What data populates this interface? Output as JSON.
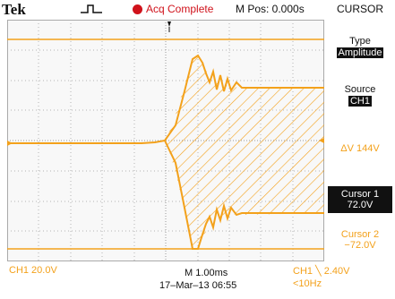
{
  "header": {
    "brand": "Tek",
    "trigger_icon": "trigger-waveform-icon",
    "acq_status": "Acq Complete",
    "m_pos": "M Pos: 0.000s",
    "menu_title": "CURSOR"
  },
  "menu": {
    "type_label": "Type",
    "type_value": "Amplitude",
    "source_label": "Source",
    "source_value": "CH1",
    "delta": "ΔV 144V",
    "cursor1_label": "Cursor 1",
    "cursor1_value": "72.0V",
    "cursor2_label": "Cursor 2",
    "cursor2_value": "−72.0V"
  },
  "footer": {
    "ch1_scale": "CH1  20.0V",
    "timebase": "M 1.00ms",
    "datetime": "17–Mar–13 06:55",
    "trigger_level": "CH1 ╲  2.40V",
    "trigger_freq": "<10Hz"
  },
  "colors": {
    "trace": "#f3a11b",
    "acq_dot": "#d0121b",
    "grid": "#b5b5b5"
  }
}
